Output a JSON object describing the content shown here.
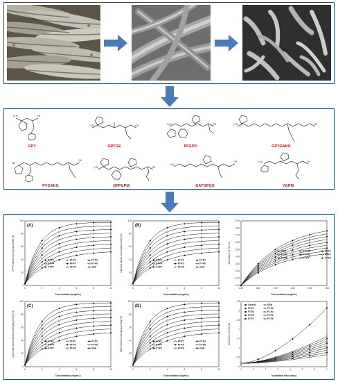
{
  "peptides": [
    {
      "name": "GPY"
    },
    {
      "name": "GPTGE"
    },
    {
      "name": "PFGPD"
    },
    {
      "name": "GPTGAKG"
    },
    {
      "name": "PYGAKG"
    },
    {
      "name": "GPFGPM"
    },
    {
      "name": "GATGPQG"
    },
    {
      "name": "YGPM"
    }
  ],
  "charts": [
    {
      "label": "(A)",
      "ylabel": "DPPH radical scavenging activity (%)",
      "xlabel": "Concentration (mg/mL)",
      "xticks": [
        "0",
        "2",
        "4",
        "6",
        "8",
        "10"
      ],
      "yticks": [
        "0",
        "20",
        "40",
        "60",
        "80",
        "100"
      ],
      "legend": [
        "FT-P1",
        "FT-P2",
        "FT-P3",
        "FT-P4",
        "FT-P5",
        "FT-P6",
        "FT-P7",
        "FT-P8",
        "GSH"
      ]
    },
    {
      "label": "(B)",
      "ylabel": "Hydroxyl radical scavenging activity (%)",
      "xlabel": "Concentration (mg/mL)",
      "xticks": [
        "0",
        "2",
        "4",
        "6",
        "8",
        "10"
      ],
      "yticks": [
        "0",
        "20",
        "40",
        "60",
        "80",
        "100"
      ],
      "legend": [
        "FT-P1",
        "FT-P2",
        "FT-P3",
        "FT-P4",
        "FT-P5",
        "FT-P6",
        "FT-P7",
        "FT-P8",
        "GSH"
      ]
    },
    {
      "label": "",
      "ylabel": "Absorbance at 700 nm",
      "xlabel": "Concentration (mg/mL)",
      "xticks": [
        "0.00",
        "0.50",
        "1.00",
        "1.50",
        "2.00",
        "2.50"
      ],
      "yticks": [
        "0.00",
        "0.10",
        "0.20",
        "0.30",
        "0.40",
        "0.50",
        "0.60",
        "0.70",
        "0.80",
        "0.90"
      ],
      "legend": [
        "GSH",
        "FT-P1",
        "FT-P2",
        "FT-P3",
        "FT-P4",
        "FT-P5",
        "FT-P6",
        "FT-P7",
        "FT-P8"
      ]
    },
    {
      "label": "(C)",
      "ylabel": "Superoxide anion radical scavenging activity (%)",
      "xlabel": "Concentration (mg/mL)",
      "xticks": [
        "0",
        "2",
        "4",
        "6",
        "8",
        "10"
      ],
      "yticks": [
        "0",
        "20",
        "40",
        "60",
        "80",
        "100"
      ],
      "legend": [
        "FT-P1",
        "FT-P2",
        "FT-P3",
        "FT-P4",
        "FT-P5",
        "FT-P6",
        "FT-P7",
        "FT-P8",
        "GSH"
      ]
    },
    {
      "label": "(D)",
      "ylabel": "ABTS radical scavenging activity (%)",
      "xlabel": "Concentration (mg/mL)",
      "xticks": [
        "0",
        "2",
        "4",
        "6",
        "8",
        "10"
      ],
      "yticks": [
        "0",
        "20",
        "40",
        "60",
        "80",
        "100"
      ],
      "legend": [
        "FT-P1",
        "FT-P2",
        "FT-P3",
        "FT-P4",
        "FT-P5",
        "FT-P6",
        "FT-P7",
        "FT-P8",
        "GSH"
      ]
    },
    {
      "label": "",
      "ylabel": "Absorbance at 500 nm",
      "xlabel": "Incubation time (days)",
      "xticks": [
        "0",
        "1",
        "2",
        "3",
        "4",
        "5",
        "6",
        "7"
      ],
      "yticks": [
        "0",
        "0.5",
        "1",
        "1.5",
        "2",
        "2.5",
        "3",
        "3.5"
      ],
      "legend": [
        "Control",
        "GSH",
        "FT-P1",
        "FT-P2",
        "FT-P3",
        "FT-P4",
        "FT-P5",
        "FT-P6",
        "FT-P7",
        "FT-P8"
      ]
    }
  ]
}
